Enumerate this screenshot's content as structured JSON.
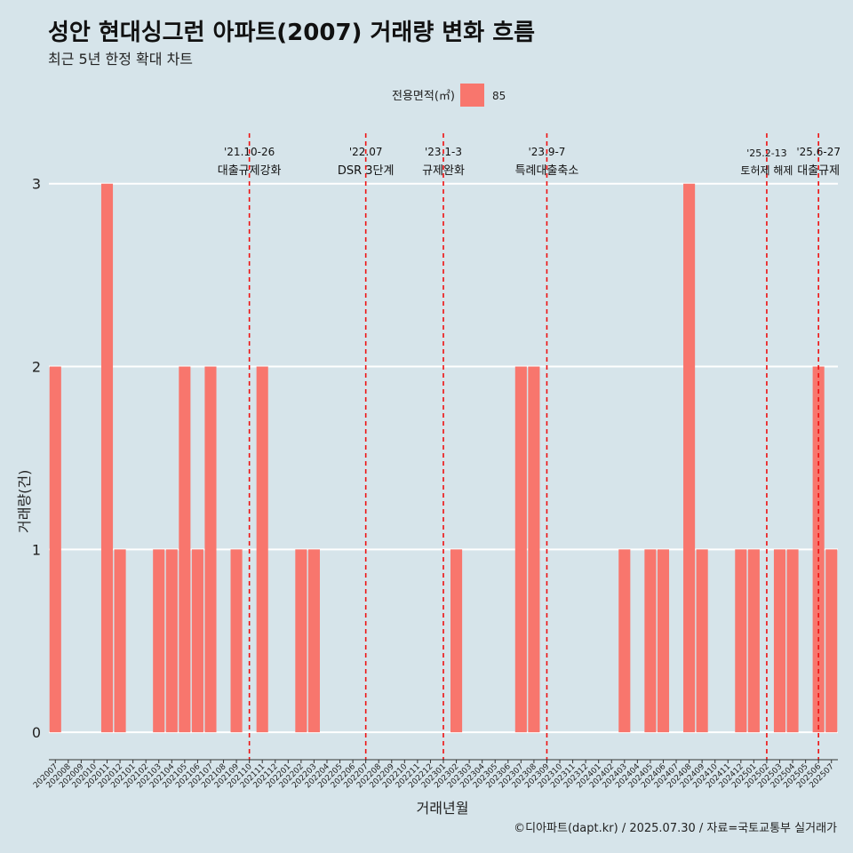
{
  "header": {
    "title": "성안 현대싱그런 아파트(2007) 거래량 변화 흐름",
    "subtitle": "최근 5년 한정 확대 차트"
  },
  "footer": {
    "caption": "©디아파트(dapt.kr) / 2025.07.30 / 자료=국토교통부 실거래가"
  },
  "chart_data": {
    "type": "bar",
    "xlabel": "거래년월",
    "ylabel": "거래량(건)",
    "ylim": [
      -0.15,
      3.3
    ],
    "yticks": [
      0,
      1,
      2,
      3
    ],
    "grid": "horizontal major lines",
    "legend": {
      "title": "전용면적(㎡)",
      "position": "top",
      "items": [
        {
          "label": "85",
          "color": "#f8766d"
        }
      ]
    },
    "bar_color": "#f8766d",
    "categories": [
      "202007",
      "202008",
      "202009",
      "202010",
      "202011",
      "202012",
      "202101",
      "202102",
      "202103",
      "202104",
      "202105",
      "202106",
      "202107",
      "202108",
      "202109",
      "202110",
      "202111",
      "202112",
      "202201",
      "202202",
      "202203",
      "202204",
      "202205",
      "202206",
      "202207",
      "202208",
      "202209",
      "202210",
      "202211",
      "202212",
      "202301",
      "202302",
      "202303",
      "202304",
      "202305",
      "202306",
      "202307",
      "202308",
      "202309",
      "202310",
      "202311",
      "202312",
      "202401",
      "202402",
      "202403",
      "202404",
      "202405",
      "202406",
      "202407",
      "202408",
      "202409",
      "202410",
      "202411",
      "202412",
      "202501",
      "202502",
      "202503",
      "202504",
      "202505",
      "202506",
      "202507"
    ],
    "series": [
      {
        "name": "85",
        "values": [
          2,
          0,
          0,
          0,
          3,
          1,
          0,
          0,
          1,
          1,
          2,
          1,
          2,
          0,
          1,
          0,
          2,
          0,
          0,
          1,
          1,
          0,
          0,
          0,
          0,
          0,
          0,
          0,
          0,
          0,
          0,
          1,
          0,
          0,
          0,
          0,
          2,
          2,
          0,
          0,
          0,
          0,
          0,
          0,
          1,
          0,
          1,
          1,
          0,
          3,
          1,
          0,
          0,
          1,
          1,
          0,
          1,
          1,
          0,
          2,
          1
        ]
      }
    ],
    "events": [
      {
        "position": 15.0,
        "date": "'21.10-26",
        "label": "대출규제강화"
      },
      {
        "position": 24.0,
        "date": "'22.07",
        "label": "DSR 3단계"
      },
      {
        "position": 30.0,
        "date": "'23.1-3",
        "label": "규제완화"
      },
      {
        "position": 38.0,
        "date": "'23.9-7",
        "label": "특례대출축소"
      },
      {
        "position": 55.0,
        "date": "'25.2-13",
        "label": "토허제 해제"
      },
      {
        "position": 59.0,
        "date": "'25.6-27",
        "label": "대출규제"
      }
    ]
  }
}
